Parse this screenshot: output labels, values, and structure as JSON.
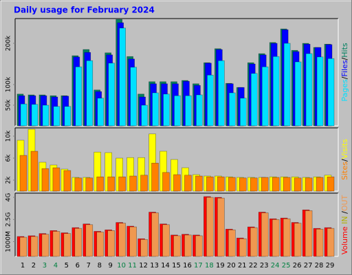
{
  "chart_data": [
    {
      "type": "bar",
      "title": "Daily usage for February 2024",
      "ylim": [
        0,
        260
      ],
      "yticks": [
        {
          "value": 50,
          "label": "50k"
        },
        {
          "value": 100,
          "label": "100k"
        },
        {
          "value": 200,
          "label": "200k"
        }
      ],
      "legend_separator": "/",
      "series": [
        {
          "name": "Hits",
          "color": "#008060",
          "values": [
            77,
            75,
            75,
            73,
            73,
            170,
            185,
            87,
            177,
            258,
            168,
            77,
            107,
            107,
            107,
            110,
            102,
            153,
            187,
            103,
            93,
            153,
            175,
            202,
            235,
            183,
            200,
            190,
            198
          ]
        },
        {
          "name": "Files",
          "color": "#0000FF",
          "values": [
            73,
            73,
            73,
            70,
            72,
            167,
            178,
            83,
            172,
            250,
            162,
            70,
            102,
            102,
            102,
            108,
            98,
            152,
            185,
            102,
            93,
            150,
            172,
            200,
            233,
            180,
            198,
            190,
            197
          ]
        },
        {
          "name": "Pages",
          "color": "#00E0FF",
          "values": [
            53,
            52,
            50,
            47,
            47,
            143,
            158,
            67,
            152,
            237,
            142,
            50,
            80,
            77,
            73,
            73,
            75,
            123,
            158,
            80,
            67,
            127,
            143,
            168,
            200,
            155,
            175,
            167,
            163
          ]
        }
      ]
    },
    {
      "type": "bar",
      "ylim": [
        0,
        11.5
      ],
      "yticks": [
        {
          "value": 2,
          "label": "2k"
        },
        {
          "value": 6,
          "label": "6k"
        },
        {
          "value": 10,
          "label": "10k"
        }
      ],
      "legend_separator": "/",
      "series": [
        {
          "name": "Visits",
          "color": "#FFFF00",
          "values": [
            9.25,
            11.25,
            5.25,
            4.75,
            4.0,
            2.5,
            2.5,
            7.1,
            7.0,
            6.0,
            6.1,
            6.1,
            10.4,
            7.25,
            5.75,
            4.25,
            3.0,
            2.75,
            2.75,
            2.6,
            2.5,
            2.5,
            2.5,
            2.6,
            2.6,
            2.6,
            2.5,
            2.6,
            2.9
          ]
        },
        {
          "name": "Sites",
          "color": "#FF8000",
          "values": [
            6.5,
            7.25,
            4.1,
            4.25,
            3.75,
            2.4,
            2.4,
            2.6,
            2.6,
            2.6,
            2.75,
            2.9,
            5.1,
            3.4,
            3.0,
            2.9,
            2.75,
            2.6,
            2.6,
            2.5,
            2.4,
            2.4,
            2.5,
            2.5,
            2.5,
            2.4,
            2.4,
            2.5,
            2.6
          ]
        }
      ]
    },
    {
      "type": "bar",
      "ylim": [
        0,
        4.28
      ],
      "yticks": [
        {
          "value": 1,
          "label": "1000M"
        },
        {
          "value": 2.5,
          "label": "2.5G"
        },
        {
          "value": 4,
          "label": "4G"
        }
      ],
      "legend_separator": "/",
      "in_label": {
        "text": "IN",
        "color": "#B0B000"
      },
      "categories": [
        "1",
        "2",
        "3",
        "4",
        "5",
        "6",
        "7",
        "8",
        "9",
        "10",
        "11",
        "12",
        "13",
        "14",
        "15",
        "16",
        "17",
        "18",
        "19",
        "20",
        "21",
        "22",
        "23",
        "24",
        "25",
        "26",
        "27",
        "28",
        "29"
      ],
      "category_colors": [
        "#000000",
        "#000000",
        "#008040",
        "#008040",
        "#000000",
        "#000000",
        "#000000",
        "#000000",
        "#000000",
        "#008040",
        "#008040",
        "#000000",
        "#000000",
        "#000000",
        "#000000",
        "#000000",
        "#008040",
        "#008040",
        "#000000",
        "#000000",
        "#000000",
        "#000000",
        "#000000",
        "#008040",
        "#008040",
        "#000000",
        "#000000",
        "#000000",
        "#000000"
      ],
      "series": [
        {
          "name": "Volume",
          "color": "#FF0000",
          "values": [
            1.35,
            1.4,
            1.55,
            1.75,
            1.6,
            1.95,
            2.2,
            1.7,
            1.8,
            2.3,
            2.05,
            1.2,
            3.0,
            2.2,
            1.45,
            1.5,
            1.45,
            4.05,
            4.0,
            1.85,
            1.25,
            2.0,
            3.0,
            2.55,
            2.6,
            2.3,
            3.15,
            1.9,
            1.95
          ]
        },
        {
          "name": "OUT",
          "color": "#F09850",
          "values": [
            1.3,
            1.35,
            1.5,
            1.7,
            1.55,
            1.9,
            2.15,
            1.65,
            1.75,
            2.25,
            2.0,
            1.15,
            2.95,
            2.15,
            1.4,
            1.45,
            1.4,
            4.0,
            3.95,
            1.8,
            1.2,
            1.95,
            2.95,
            2.5,
            2.55,
            2.25,
            3.1,
            1.85,
            1.9
          ]
        }
      ]
    }
  ]
}
